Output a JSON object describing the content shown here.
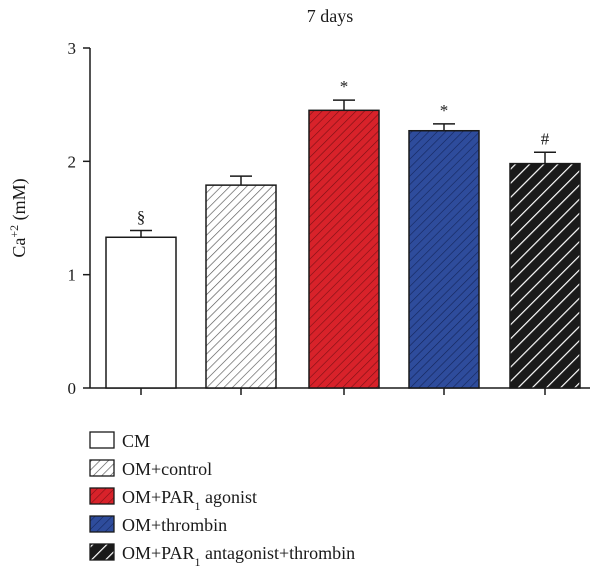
{
  "chart_data": {
    "type": "bar",
    "title": "7 days",
    "xlabel": "",
    "ylabel": "Ca+2 (mM)",
    "ylabel_parts": {
      "base": "Ca",
      "sup": "+2",
      "rest": " (mM)"
    },
    "ylim": [
      0,
      3
    ],
    "yticks": [
      0,
      1,
      2,
      3
    ],
    "grid": false,
    "legend_position": "bottom",
    "categories": [
      "CM",
      "OM+control",
      "OM+PAR1 agonist",
      "OM+thrombin",
      "OM+PAR1 antagonist+thrombin"
    ],
    "values": [
      1.33,
      1.79,
      2.45,
      2.27,
      1.98
    ],
    "errors": [
      0.06,
      0.08,
      0.09,
      0.06,
      0.1
    ],
    "annotations": [
      "§",
      "",
      "*",
      "*",
      "#"
    ],
    "legend": [
      {
        "label": "CM",
        "fill": "white",
        "pattern": "none"
      },
      {
        "label": "OM+control",
        "fill": "white",
        "pattern": "hatch"
      },
      {
        "label": "OM+PAR1 agonist",
        "base": "OM+PAR",
        "sub": "1",
        "rest": " agonist",
        "fill": "#d8222a",
        "pattern": "hatch"
      },
      {
        "label": "OM+thrombin",
        "fill": "#2e4c9c",
        "pattern": "hatch"
      },
      {
        "label": "OM+PAR1 antagonist+thrombin",
        "base": "OM+PAR",
        "sub": "1",
        "rest": " antagonist+thrombin",
        "fill": "#1a1a1a",
        "pattern": "hatch-wide"
      }
    ],
    "colors": {
      "red": "#d8222a",
      "blue": "#2e4c9c",
      "black": "#1a1a1a",
      "hatch_light": "#555555"
    }
  }
}
